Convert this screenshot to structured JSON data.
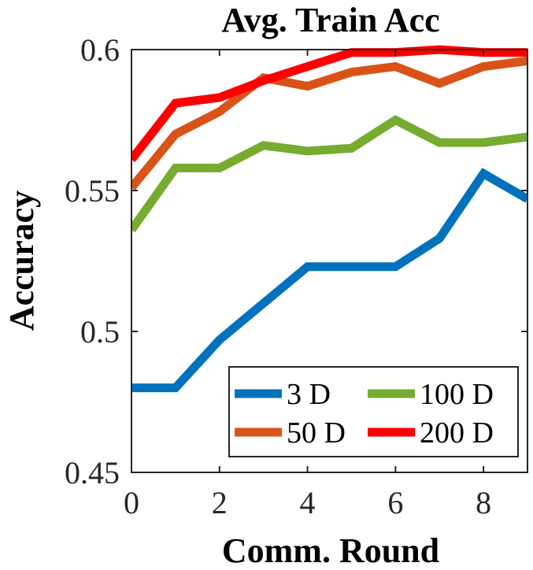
{
  "chart_data": {
    "type": "line",
    "title": "Avg. Train Acc",
    "xlabel": "Comm. Round",
    "ylabel": "Accuracy",
    "xlim": [
      0,
      9
    ],
    "ylim": [
      0.45,
      0.6
    ],
    "grid": false,
    "legend_position": "bottom-right",
    "x": [
      0,
      1,
      2,
      3,
      4,
      5,
      6,
      7,
      8,
      9
    ],
    "x_ticks": [
      0,
      2,
      4,
      6,
      8
    ],
    "x_tick_labels": [
      "0",
      "2",
      "4",
      "6",
      "8"
    ],
    "y_ticks": [
      0.45,
      0.5,
      0.55,
      0.6
    ],
    "y_tick_labels": [
      "0.45",
      "0.5",
      "0.55",
      "0.6"
    ],
    "series": [
      {
        "name": "3 D",
        "color": "#0072BD",
        "values": [
          0.48,
          0.48,
          0.497,
          0.51,
          0.523,
          0.523,
          0.523,
          0.533,
          0.556,
          0.547
        ]
      },
      {
        "name": "50 D",
        "color": "#D95319",
        "values": [
          0.551,
          0.57,
          0.578,
          0.59,
          0.587,
          0.592,
          0.594,
          0.588,
          0.594,
          0.596
        ]
      },
      {
        "name": "100 D",
        "color": "#77AC30",
        "values": [
          0.536,
          0.558,
          0.558,
          0.566,
          0.564,
          0.565,
          0.575,
          0.567,
          0.567,
          0.569
        ]
      },
      {
        "name": "200 D",
        "color": "#FF0000",
        "values": [
          0.561,
          0.581,
          0.583,
          0.589,
          0.594,
          0.599,
          0.599,
          0.6,
          0.599,
          0.599
        ]
      }
    ],
    "legend_order": [
      "3 D",
      "100 D",
      "50 D",
      "200 D"
    ]
  }
}
